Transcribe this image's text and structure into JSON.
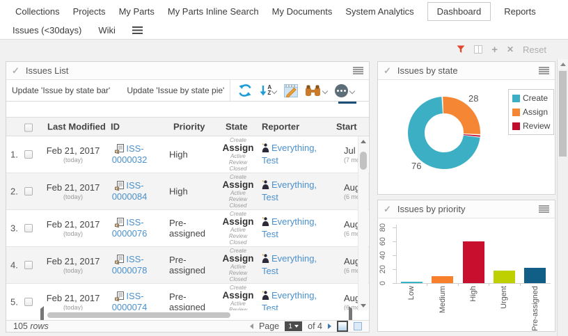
{
  "nav": {
    "row1": [
      "Collections",
      "Projects",
      "My Parts",
      "My Parts Inline Search",
      "My Documents",
      "System Analytics",
      "Dashboard",
      "Reports"
    ],
    "row2": [
      "Issues (<30days)",
      "Wiki"
    ],
    "active_item": "Dashboard"
  },
  "filter_bar": {
    "reset_label": "Reset"
  },
  "issues_list": {
    "title": "Issues List",
    "toolbar": {
      "update_bar_label": "Update 'Issue by state bar'",
      "update_pie_label": "Update 'Issue by state pie'"
    },
    "columns": [
      "Last Modified",
      "ID",
      "Priority",
      "State",
      "Reporter",
      "Start"
    ],
    "rows": [
      {
        "num": "1.",
        "modified": "Feb 21, 2017",
        "modified_sub": "(today)",
        "id_l1": "ISS-",
        "id_l2": "0000032",
        "priority": "High",
        "state_above": "Create",
        "state": "Assign",
        "state_b1": "Active",
        "state_b2": "Review",
        "state_b3": "Closed",
        "rep_l1": "Everything,",
        "rep_l2": "Test",
        "start": "Jul 1",
        "start_sub": "(7 mon"
      },
      {
        "num": "2.",
        "modified": "Feb 21, 2017",
        "modified_sub": "(today)",
        "id_l1": "ISS-",
        "id_l2": "0000084",
        "priority": "High",
        "state_above": "Create",
        "state": "Assign",
        "state_b1": "Active",
        "state_b2": "Review",
        "state_b3": "Closed",
        "rep_l1": "Everything,",
        "rep_l2": "Test",
        "start": "Aug",
        "start_sub": "(6 mon"
      },
      {
        "num": "3.",
        "modified": "Feb 21, 2017",
        "modified_sub": "(today)",
        "id_l1": "ISS-",
        "id_l2": "0000076",
        "priority": "Pre-assigned",
        "state_above": "Create",
        "state": "Assign",
        "state_b1": "Active",
        "state_b2": "Review",
        "state_b3": "Closed",
        "rep_l1": "Everything,",
        "rep_l2": "Test",
        "start": "Aug",
        "start_sub": "(6 mon"
      },
      {
        "num": "4.",
        "modified": "Feb 21, 2017",
        "modified_sub": "(today)",
        "id_l1": "ISS-",
        "id_l2": "0000078",
        "priority": "Pre-assigned",
        "state_above": "Create",
        "state": "Assign",
        "state_b1": "Active",
        "state_b2": "Review",
        "state_b3": "Closed",
        "rep_l1": "Everything,",
        "rep_l2": "Test",
        "start": "Aug",
        "start_sub": "(6 mon"
      },
      {
        "num": "5.",
        "modified": "Feb 21, 2017",
        "modified_sub": "(today)",
        "id_l1": "ISS-",
        "id_l2": "0000074",
        "priority": "Pre-assigned",
        "state_above": "Create",
        "state": "Assign",
        "state_b1": "Active",
        "state_b2": "Review",
        "state_b3": "Closed",
        "rep_l1": "Everything,",
        "rep_l2": "Test",
        "start": "Aug",
        "start_sub": "(6 mon"
      }
    ],
    "footer": {
      "row_count": "105",
      "rows_word": "rows",
      "page_word": "Page",
      "current_page": "1",
      "of_label": "of 4"
    }
  },
  "issues_by_state": {
    "title": "Issues by state",
    "chart_data": {
      "type": "pie",
      "donut": true,
      "labels": [
        "Create",
        "Assign",
        "Review"
      ],
      "values": [
        76,
        28,
        1
      ],
      "colors": [
        "#3cafc5",
        "#f58634",
        "#c00d2d"
      ],
      "value_labels": [
        {
          "text": "76"
        },
        {
          "text": "28"
        }
      ],
      "legend_position": "right",
      "start_angle": -3,
      "draw_order": [
        1,
        2,
        0
      ]
    }
  },
  "issues_by_priority": {
    "title": "Issues by priority",
    "chart_data": {
      "type": "bar",
      "categories": [
        "Low",
        "Medium",
        "High",
        "Urgent",
        "Pre-assigned"
      ],
      "values": [
        2,
        10,
        60,
        18,
        22
      ],
      "colors": [
        "#35b4c8",
        "#f8802d",
        "#c8102e",
        "#bed000",
        "#115e86"
      ],
      "ylim": [
        0,
        80
      ],
      "yticks": [
        0,
        20,
        40,
        60,
        80
      ]
    }
  }
}
